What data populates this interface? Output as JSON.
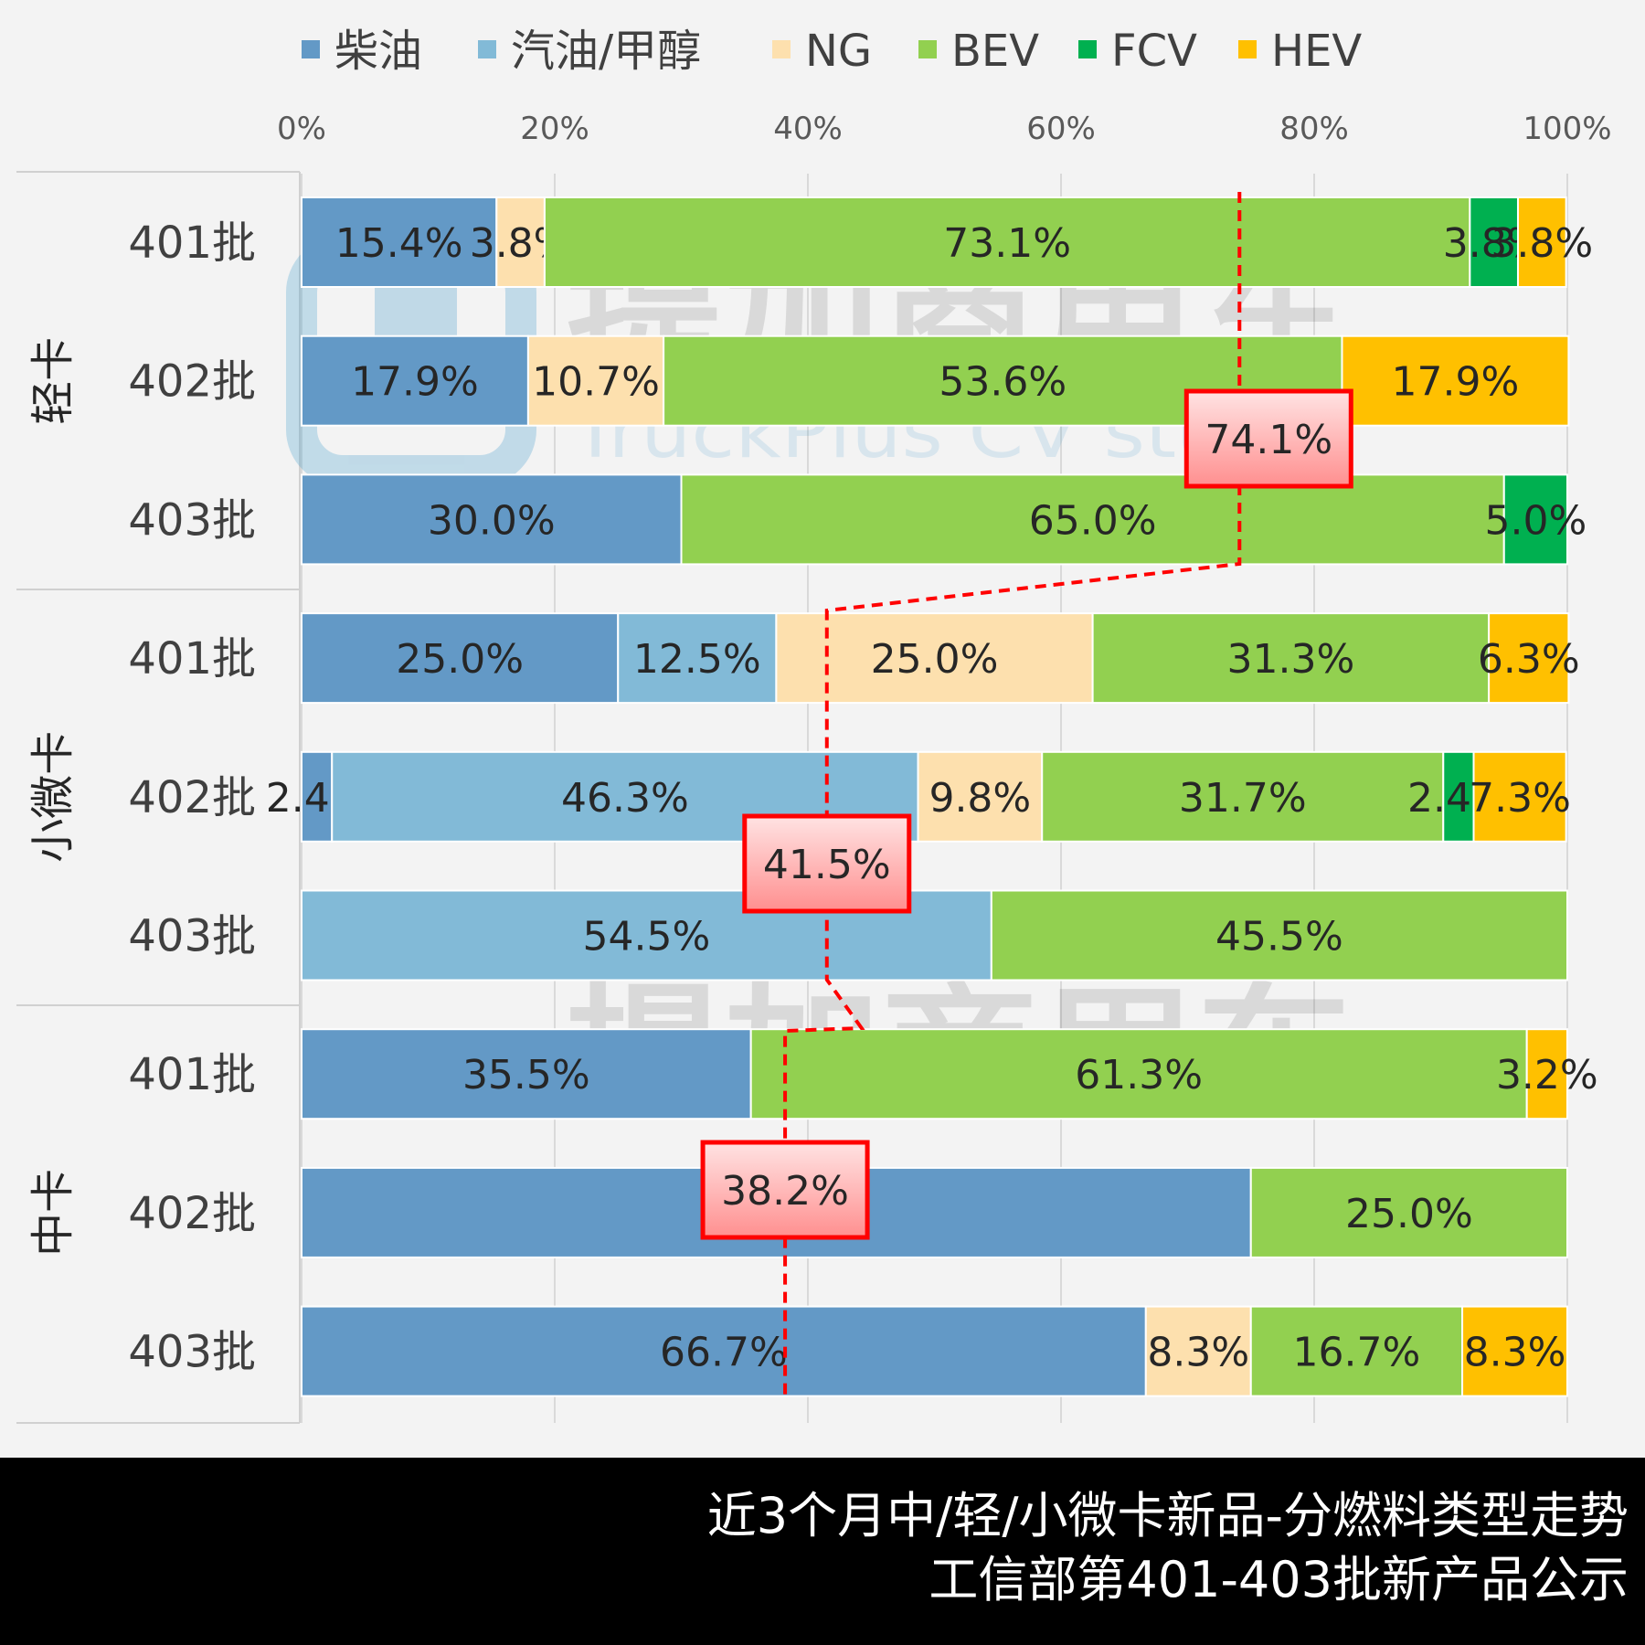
{
  "chart_data": {
    "type": "bar",
    "orientation": "horizontal",
    "stacked": "percent",
    "title": "近3个月中/轻/小微卡新品-分燃料类型走势",
    "subtitle": "工信部第401-403批新产品公示",
    "xlim": [
      0,
      100
    ],
    "x_ticks": [
      "0%",
      "20%",
      "40%",
      "60%",
      "80%",
      "100%"
    ],
    "grid": true,
    "legend": "top",
    "series": [
      {
        "name": "柴油",
        "color": "#6399c6"
      },
      {
        "name": "汽油/甲醇",
        "color": "#82bad7"
      },
      {
        "name": "NG",
        "color": "#fde0ae"
      },
      {
        "name": "BEV",
        "color": "#92d050"
      },
      {
        "name": "FCV",
        "color": "#00b050"
      },
      {
        "name": "HEV",
        "color": "#ffc000"
      }
    ],
    "groups": [
      {
        "name": "轻卡",
        "rows": [
          {
            "label": "401批",
            "values": [
              15.4,
              0,
              3.8,
              73.1,
              3.8,
              3.8
            ],
            "labels": [
              "15.4%",
              "",
              "3.8%",
              "73.1%",
              "3.8%",
              "3.8%"
            ]
          },
          {
            "label": "402批",
            "values": [
              17.9,
              0,
              10.7,
              53.6,
              0,
              17.9
            ],
            "labels": [
              "17.9%",
              "",
              "10.7%",
              "53.6%",
              "",
              "17.9%"
            ]
          },
          {
            "label": "403批",
            "values": [
              30.0,
              0,
              0,
              65.0,
              5.0,
              0
            ],
            "labels": [
              "30.0%",
              "",
              "",
              "65.0%",
              "5.0%",
              ""
            ]
          }
        ]
      },
      {
        "name": "小微卡",
        "rows": [
          {
            "label": "401批",
            "values": [
              25.0,
              12.5,
              25.0,
              31.3,
              0,
              6.3
            ],
            "labels": [
              "25.0%",
              "12.5%",
              "25.0%",
              "31.3%",
              "",
              "6.3%"
            ]
          },
          {
            "label": "402批",
            "values": [
              2.4,
              46.3,
              9.8,
              31.7,
              2.4,
              7.3
            ],
            "labels": [
              "2.4%",
              "46.3%",
              "9.8%",
              "31.7%",
              "2.4%",
              "7.3%"
            ]
          },
          {
            "label": "403批",
            "values": [
              0,
              54.5,
              0,
              45.5,
              0,
              0
            ],
            "labels": [
              "",
              "54.5%",
              "",
              "45.5%",
              "",
              ""
            ]
          }
        ]
      },
      {
        "name": "中卡",
        "rows": [
          {
            "label": "401批",
            "values": [
              35.5,
              0,
              0,
              61.3,
              0,
              3.2
            ],
            "labels": [
              "35.5%",
              "",
              "",
              "61.3%",
              "",
              "3.2%"
            ]
          },
          {
            "label": "402批",
            "values": [
              75.0,
              0,
              0,
              25.0,
              0,
              0
            ],
            "labels": [
              "75.0%",
              "",
              "",
              "25.0%",
              "",
              ""
            ]
          },
          {
            "label": "403批",
            "values": [
              66.7,
              0,
              8.3,
              16.7,
              0,
              8.3
            ],
            "labels": [
              "66.7%",
              "",
              "8.3%",
              "16.7%",
              "",
              "8.3%"
            ]
          }
        ]
      }
    ],
    "annotations": [
      {
        "group": "轻卡",
        "text": "74.1%",
        "value": 74.1
      },
      {
        "group": "小微卡",
        "text": "41.5%",
        "value": 41.5
      },
      {
        "group": "中卡",
        "text": "38.2%",
        "value": 38.2
      }
    ],
    "annotation_color": "#ff0000"
  },
  "watermark": {
    "brand": "提加商用车",
    "sub": "TruckPlus CV studio"
  },
  "footer": {
    "line1": "近3个月中/轻/小微卡新品-分燃料类型走势",
    "line2": "工信部第401-403批新产品公示"
  }
}
